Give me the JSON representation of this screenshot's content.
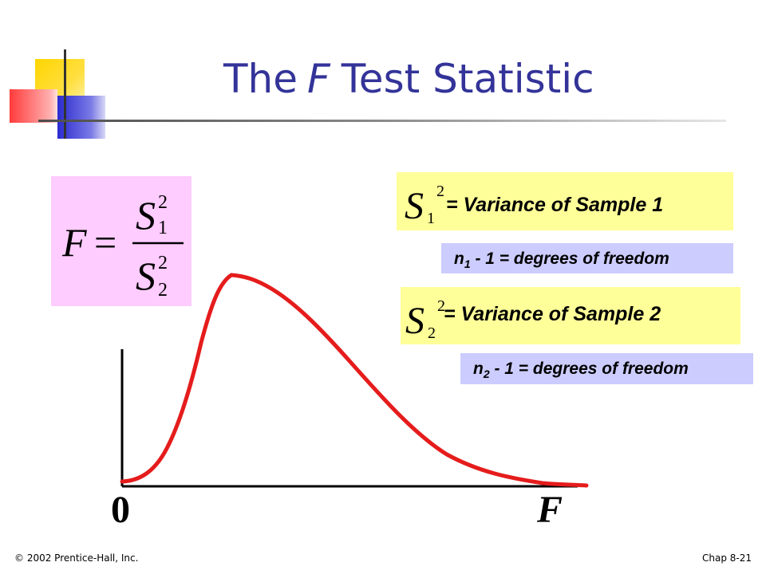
{
  "slide": {
    "title_pre": "The",
    "title_f": "F",
    "title_post": "Test Statistic",
    "formula": {
      "lhs": "F",
      "equals": "=",
      "num_var": "S",
      "num_sub": "1",
      "num_sup": "2",
      "den_var": "S",
      "den_sub": "2",
      "den_sup": "2"
    },
    "sample1": {
      "symbol": "S",
      "sub": "1",
      "sup": "2",
      "label": "= Variance of Sample 1"
    },
    "df1": {
      "var": "n",
      "sub": "1",
      "text": "- 1 = degrees of freedom"
    },
    "sample2": {
      "symbol": "S",
      "sub": "2",
      "sup": "2",
      "label": "= Variance of Sample 2"
    },
    "df2": {
      "var": "n",
      "sub": "2",
      "text": "- 1 = degrees of freedom"
    },
    "axis": {
      "origin_label": "0",
      "x_label": "F"
    },
    "footer_left": "© 2002 Prentice-Hall, Inc.",
    "footer_right": "Chap 8-21",
    "colors": {
      "title": "#333399",
      "curve": "#e51c1c",
      "formula_bg": "#ffccff",
      "variance_bg": "#ffff99",
      "df_bg": "#ccccff"
    }
  }
}
